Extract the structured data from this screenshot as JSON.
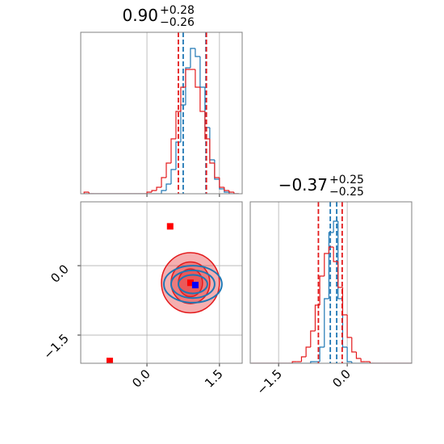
{
  "chart_data": [
    {
      "type": "histogram",
      "title": {
        "value": "0.90",
        "upper": "+0.28",
        "lower": "−0.26"
      },
      "bins": [
        -1.3,
        -1.2,
        -1.1,
        -1.0,
        -0.9,
        -0.8,
        -0.7,
        -0.6,
        -0.5,
        -0.4,
        -0.3,
        -0.2,
        -0.1,
        0.0,
        0.1,
        0.2,
        0.3,
        0.4,
        0.5,
        0.6,
        0.7,
        0.8,
        0.9,
        1.0,
        1.1,
        1.2,
        1.3,
        1.4,
        1.5,
        1.6,
        1.7,
        1.8,
        1.9
      ],
      "series": [
        {
          "color": "#1f77b4",
          "values": [
            0,
            0,
            0,
            0,
            0,
            0,
            0,
            0,
            0,
            0,
            0,
            0,
            0,
            0,
            0,
            0,
            2,
            6,
            15,
            32,
            55,
            78,
            90,
            85,
            66,
            41,
            21,
            9,
            3,
            1,
            0,
            0
          ],
          "quantiles": [
            0.75,
            1.22
          ]
        },
        {
          "color": "#e31a1c",
          "values": [
            1,
            0,
            0,
            0,
            0,
            0,
            0,
            0,
            0,
            0,
            0,
            0,
            0,
            1,
            2,
            4,
            10,
            19,
            34,
            51,
            66,
            77,
            77,
            66,
            51,
            34,
            19,
            10,
            4,
            2,
            1,
            0
          ],
          "quantiles": [
            0.65,
            1.23
          ]
        }
      ],
      "xlim": [
        -1.37,
        1.97
      ],
      "ylim": [
        0,
        100
      ],
      "xticks": [
        {
          "value": 0,
          "label": "0.0"
        },
        1.5
      ],
      "tick_labels": false,
      "grid": true
    },
    {
      "type": "contour",
      "xlim": [
        -1.37,
        1.97
      ],
      "ylim": [
        -2.11,
        1.38
      ],
      "xticks": [
        {
          "value": 0,
          "label": "0.0"
        },
        1.5
      ],
      "yticks": [
        {
          "value": 0,
          "label": "0.0"
        },
        {
          "value": -1.5,
          "label": "−1.5"
        }
      ],
      "tick_labels": true,
      "grid": true,
      "contours": [
        {
          "color": "#e31a1c",
          "fill": true,
          "cx": 0.9,
          "cy": -0.37,
          "rx": 0.6,
          "ry": 0.65
        },
        {
          "color": "#e31a1c",
          "fill": true,
          "cx": 0.9,
          "cy": -0.37,
          "rx": 0.4,
          "ry": 0.45
        },
        {
          "color": "#e31a1c",
          "fill": true,
          "cx": 0.9,
          "cy": -0.37,
          "rx": 0.25,
          "ry": 0.3
        },
        {
          "color": "#1f77b4",
          "fill": false,
          "cx": 0.95,
          "cy": -0.4,
          "rx": 0.6,
          "ry": 0.4
        },
        {
          "color": "#1f77b4",
          "fill": false,
          "cx": 0.95,
          "cy": -0.4,
          "rx": 0.45,
          "ry": 0.3
        },
        {
          "color": "#1f77b4",
          "fill": false,
          "cx": 0.95,
          "cy": -0.4,
          "rx": 0.3,
          "ry": 0.2
        }
      ],
      "points": [
        {
          "color": "#ff0000",
          "x": 0.48,
          "y": 0.85
        },
        {
          "color": "#ff0000",
          "x": -0.77,
          "y": -2.06
        },
        {
          "color": "#ff0000",
          "x": 0.9,
          "y": -0.37
        },
        {
          "color": "#0000ff",
          "x": 1.0,
          "y": -0.42
        }
      ]
    },
    {
      "type": "histogram",
      "title": {
        "value": "−0.37",
        "upper": "+0.25",
        "lower": "−0.25"
      },
      "bins": [
        -2.1,
        -2.0,
        -1.9,
        -1.8,
        -1.7,
        -1.6,
        -1.5,
        -1.4,
        -1.3,
        -1.2,
        -1.1,
        -1.0,
        -0.9,
        -0.8,
        -0.7,
        -0.6,
        -0.5,
        -0.4,
        -0.3,
        -0.2,
        -0.1,
        0.0,
        0.1,
        0.2,
        0.3,
        0.4,
        0.5,
        0.6,
        0.7,
        0.8,
        0.9,
        1.0,
        1.1,
        1.2,
        1.3,
        1.4
      ],
      "series": [
        {
          "color": "#1f77b4",
          "values": [
            0,
            0,
            0,
            0,
            0,
            0,
            0,
            0,
            0,
            0,
            0,
            0,
            0,
            1,
            1,
            10,
            40,
            81,
            88,
            40,
            10,
            1,
            0,
            0,
            0,
            0,
            0,
            0,
            0,
            0,
            0,
            0,
            0,
            0,
            0
          ],
          "quantiles": [
            -0.37,
            -0.23
          ]
        },
        {
          "color": "#e31a1c",
          "values": [
            0,
            0,
            0,
            0,
            0,
            0,
            0,
            0,
            0,
            1,
            1,
            4,
            10,
            20,
            36,
            54,
            68,
            72,
            63,
            47,
            30,
            16,
            7,
            3,
            1,
            1,
            0,
            0,
            0,
            0,
            0,
            0,
            0,
            0,
            0
          ],
          "quantiles": [
            -0.63,
            -0.11
          ]
        }
      ],
      "xlim": [
        -2.12,
        1.41
      ],
      "ylim": [
        0,
        100
      ],
      "xticks": [
        {
          "value": -1.5,
          "label": "−1.5"
        },
        {
          "value": 0,
          "label": "0.0"
        }
      ],
      "tick_labels": true,
      "grid": true
    }
  ]
}
